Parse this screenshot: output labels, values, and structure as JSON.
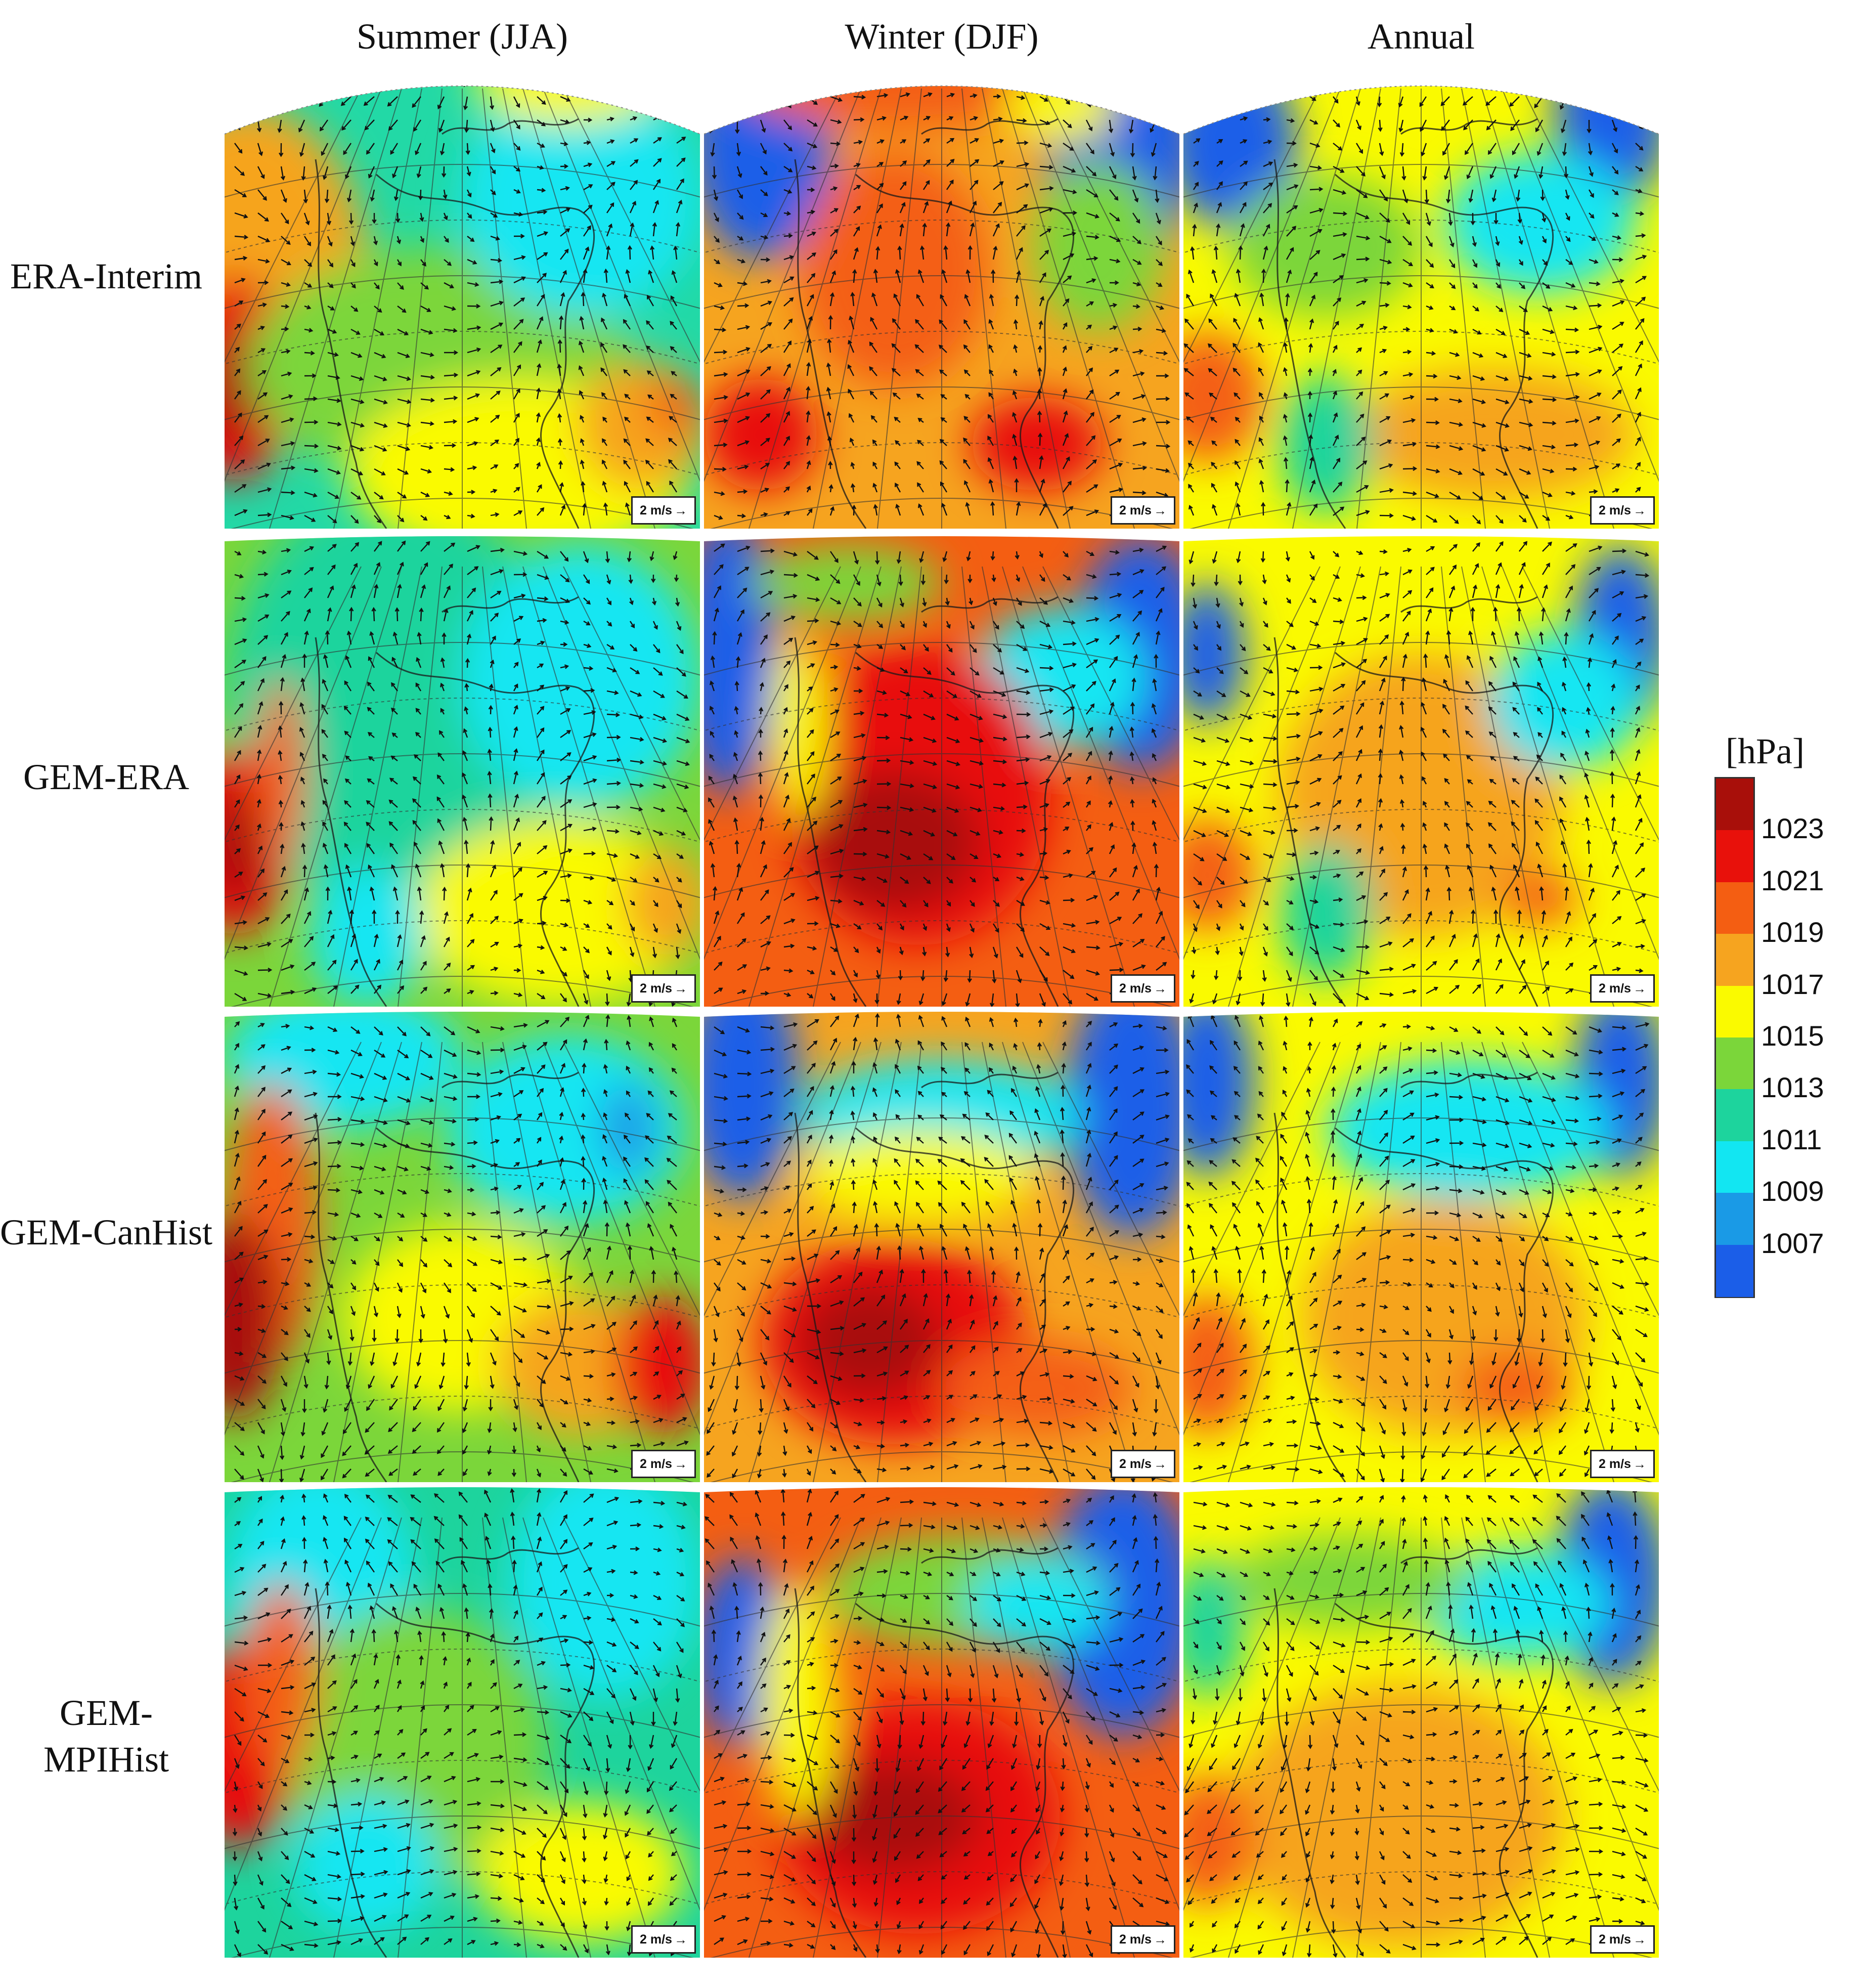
{
  "columns": [
    "Summer (JJA)",
    "Winter (DJF)",
    "Annual"
  ],
  "rows": [
    "ERA-Interim",
    "GEM-ERA",
    "GEM-CanHist",
    "GEM-MPIHist"
  ],
  "reference_vector": "2 m/s",
  "colorbar": {
    "title": "[hPa]",
    "labels": [
      "1023",
      "1021",
      "1019",
      "1017",
      "1015",
      "1013",
      "1011",
      "1009",
      "1007"
    ],
    "colors": [
      "#a80f0a",
      "#e8110b",
      "#f45e12",
      "#f6a41f",
      "#fafa00",
      "#7bd63a",
      "#1dd49d",
      "#12e6f2",
      "#1a9ae6",
      "#1b5ee8"
    ]
  },
  "maps": [
    {
      "row": 0,
      "col": 0,
      "bg": "#22d9a6",
      "blobs": [
        [
          "#f6a41f",
          0.05,
          0.45,
          0.25,
          0.35
        ],
        [
          "#e8110b",
          0.02,
          0.68,
          0.13,
          0.22
        ],
        [
          "#a80f0a",
          0.02,
          0.7,
          0.06,
          0.12
        ],
        [
          "#7bd63a",
          0.45,
          0.65,
          0.4,
          0.25
        ],
        [
          "#12e6f2",
          0.75,
          0.3,
          0.25,
          0.25
        ],
        [
          "#fafa00",
          0.62,
          0.88,
          0.36,
          0.2
        ],
        [
          "#f6a41f",
          0.88,
          0.78,
          0.14,
          0.14
        ],
        [
          "#f45e12",
          0.95,
          0.74,
          0.06,
          0.06
        ],
        [
          "#fafa00",
          0.72,
          0.05,
          0.2,
          0.09
        ]
      ]
    },
    {
      "row": 0,
      "col": 1,
      "bg": "#f6a41f",
      "blobs": [
        [
          "#1b5ee8",
          0.12,
          0.18,
          0.15,
          0.25
        ],
        [
          "#1b5ee8",
          0.88,
          0.18,
          0.16,
          0.25
        ],
        [
          "#f45e12",
          0.42,
          0.05,
          0.35,
          0.1
        ],
        [
          "#f45e12",
          0.4,
          0.45,
          0.2,
          0.25
        ],
        [
          "#e8110b",
          0.12,
          0.8,
          0.12,
          0.12
        ],
        [
          "#e8110b",
          0.7,
          0.82,
          0.14,
          0.1
        ],
        [
          "#7bd63a",
          0.83,
          0.4,
          0.14,
          0.18
        ],
        [
          "#fafa00",
          0.75,
          0.1,
          0.12,
          0.08
        ]
      ]
    },
    {
      "row": 0,
      "col": 2,
      "bg": "#fafa00",
      "blobs": [
        [
          "#1b5ee8",
          0.1,
          0.18,
          0.14,
          0.18
        ],
        [
          "#1b5ee8",
          0.9,
          0.12,
          0.12,
          0.2
        ],
        [
          "#12e6f2",
          0.75,
          0.35,
          0.2,
          0.15
        ],
        [
          "#f45e12",
          0.05,
          0.72,
          0.12,
          0.14
        ],
        [
          "#f6a41f",
          0.65,
          0.8,
          0.3,
          0.14
        ],
        [
          "#1dd49d",
          0.3,
          0.82,
          0.1,
          0.15
        ],
        [
          "#7bd63a",
          0.3,
          0.4,
          0.2,
          0.15
        ]
      ]
    },
    {
      "row": 1,
      "col": 0,
      "bg": "#7bd63a",
      "blobs": [
        [
          "#1dd49d",
          0.35,
          0.35,
          0.35,
          0.45
        ],
        [
          "#12e6f2",
          0.75,
          0.3,
          0.25,
          0.28
        ],
        [
          "#e8110b",
          0.02,
          0.65,
          0.12,
          0.2
        ],
        [
          "#a80f0a",
          0.02,
          0.66,
          0.06,
          0.12
        ],
        [
          "#f45e12",
          0.12,
          0.5,
          0.05,
          0.2
        ],
        [
          "#fafa00",
          0.7,
          0.8,
          0.3,
          0.2
        ],
        [
          "#f6a41f",
          0.93,
          0.78,
          0.09,
          0.12
        ],
        [
          "#12e6f2",
          0.3,
          0.85,
          0.12,
          0.15
        ]
      ]
    },
    {
      "row": 1,
      "col": 1,
      "bg": "#f45e12",
      "blobs": [
        [
          "#1b5ee8",
          0.05,
          0.25,
          0.1,
          0.3
        ],
        [
          "#1b5ee8",
          0.92,
          0.25,
          0.14,
          0.25
        ],
        [
          "#12e6f2",
          0.75,
          0.3,
          0.18,
          0.15
        ],
        [
          "#e8110b",
          0.45,
          0.55,
          0.28,
          0.32
        ],
        [
          "#a80f0a",
          0.4,
          0.65,
          0.18,
          0.15
        ],
        [
          "#7bd63a",
          0.3,
          0.1,
          0.2,
          0.08
        ],
        [
          "#fafa00",
          0.2,
          0.4,
          0.06,
          0.2
        ]
      ]
    },
    {
      "row": 1,
      "col": 2,
      "bg": "#fafa00",
      "blobs": [
        [
          "#f6a41f",
          0.5,
          0.55,
          0.3,
          0.3
        ],
        [
          "#1b5ee8",
          0.92,
          0.22,
          0.1,
          0.2
        ],
        [
          "#12e6f2",
          0.8,
          0.35,
          0.16,
          0.15
        ],
        [
          "#1b5ee8",
          0.05,
          0.25,
          0.08,
          0.15
        ],
        [
          "#f45e12",
          0.05,
          0.72,
          0.1,
          0.12
        ],
        [
          "#f45e12",
          0.75,
          0.77,
          0.08,
          0.06
        ],
        [
          "#1dd49d",
          0.3,
          0.8,
          0.1,
          0.15
        ]
      ]
    },
    {
      "row": 2,
      "col": 0,
      "bg": "#7bd63a",
      "blobs": [
        [
          "#12e6f2",
          0.25,
          0.1,
          0.25,
          0.15
        ],
        [
          "#12e6f2",
          0.72,
          0.25,
          0.25,
          0.2
        ],
        [
          "#1a9ae6",
          0.85,
          0.25,
          0.06,
          0.1
        ],
        [
          "#f45e12",
          0.1,
          0.45,
          0.1,
          0.3
        ],
        [
          "#a80f0a",
          0.02,
          0.65,
          0.1,
          0.22
        ],
        [
          "#fafa00",
          0.5,
          0.65,
          0.25,
          0.2
        ],
        [
          "#f6a41f",
          0.75,
          0.75,
          0.18,
          0.15
        ],
        [
          "#e8110b",
          0.92,
          0.75,
          0.1,
          0.15
        ]
      ]
    },
    {
      "row": 2,
      "col": 1,
      "bg": "#f6a41f",
      "blobs": [
        [
          "#1b5ee8",
          0.08,
          0.15,
          0.12,
          0.25
        ],
        [
          "#1b5ee8",
          0.9,
          0.2,
          0.14,
          0.28
        ],
        [
          "#12e6f2",
          0.5,
          0.22,
          0.3,
          0.12
        ],
        [
          "#fafa00",
          0.45,
          0.35,
          0.25,
          0.1
        ],
        [
          "#e8110b",
          0.4,
          0.7,
          0.28,
          0.22
        ],
        [
          "#a80f0a",
          0.35,
          0.7,
          0.15,
          0.12
        ],
        [
          "#f45e12",
          0.7,
          0.8,
          0.2,
          0.1
        ]
      ]
    },
    {
      "row": 2,
      "col": 2,
      "bg": "#fafa00",
      "blobs": [
        [
          "#1b5ee8",
          0.05,
          0.15,
          0.1,
          0.2
        ],
        [
          "#1b5ee8",
          0.92,
          0.15,
          0.1,
          0.2
        ],
        [
          "#12e6f2",
          0.6,
          0.25,
          0.3,
          0.15
        ],
        [
          "#f6a41f",
          0.55,
          0.65,
          0.3,
          0.25
        ],
        [
          "#f45e12",
          0.05,
          0.75,
          0.1,
          0.15
        ],
        [
          "#f45e12",
          0.7,
          0.8,
          0.12,
          0.08
        ]
      ]
    },
    {
      "row": 3,
      "col": 0,
      "bg": "#1dd49d",
      "blobs": [
        [
          "#12e6f2",
          0.2,
          0.2,
          0.2,
          0.25
        ],
        [
          "#12e6f2",
          0.8,
          0.2,
          0.2,
          0.25
        ],
        [
          "#7bd63a",
          0.4,
          0.55,
          0.28,
          0.3
        ],
        [
          "#e8110b",
          0.03,
          0.55,
          0.12,
          0.22
        ],
        [
          "#f45e12",
          0.12,
          0.4,
          0.08,
          0.2
        ],
        [
          "#fafa00",
          0.75,
          0.82,
          0.22,
          0.15
        ],
        [
          "#12e6f2",
          0.3,
          0.8,
          0.15,
          0.15
        ]
      ]
    },
    {
      "row": 3,
      "col": 1,
      "bg": "#f45e12",
      "blobs": [
        [
          "#1b5ee8",
          0.08,
          0.35,
          0.1,
          0.2
        ],
        [
          "#1b5ee8",
          0.88,
          0.25,
          0.16,
          0.28
        ],
        [
          "#7bd63a",
          0.55,
          0.22,
          0.3,
          0.12
        ],
        [
          "#12e6f2",
          0.7,
          0.25,
          0.15,
          0.1
        ],
        [
          "#e8110b",
          0.45,
          0.7,
          0.3,
          0.25
        ],
        [
          "#a80f0a",
          0.4,
          0.7,
          0.18,
          0.12
        ],
        [
          "#fafa00",
          0.2,
          0.45,
          0.08,
          0.25
        ]
      ]
    },
    {
      "row": 3,
      "col": 2,
      "bg": "#fafa00",
      "blobs": [
        [
          "#1b5ee8",
          0.9,
          0.2,
          0.12,
          0.22
        ],
        [
          "#12e6f2",
          0.7,
          0.25,
          0.2,
          0.12
        ],
        [
          "#f6a41f",
          0.45,
          0.7,
          0.35,
          0.28
        ],
        [
          "#f45e12",
          0.05,
          0.75,
          0.1,
          0.14
        ],
        [
          "#1dd49d",
          0.05,
          0.3,
          0.08,
          0.15
        ],
        [
          "#7bd63a",
          0.35,
          0.2,
          0.25,
          0.1
        ]
      ]
    }
  ]
}
